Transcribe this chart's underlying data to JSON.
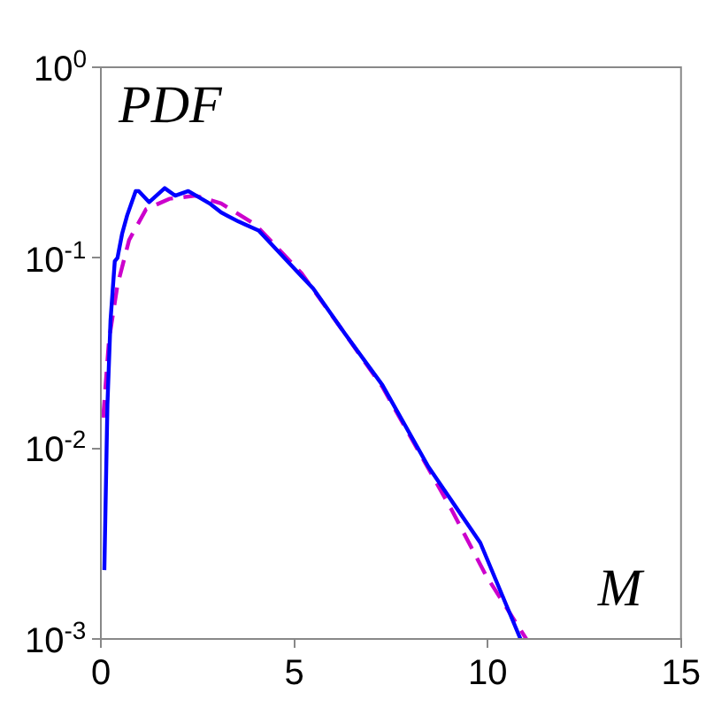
{
  "chart_data": {
    "type": "line",
    "xlabel": "M",
    "ylabel": "PDF",
    "log": "y",
    "xlim": [
      0,
      15
    ],
    "xticks": [
      0,
      5,
      10,
      15
    ],
    "ylim": [
      0.001,
      1
    ],
    "yticks": [
      {
        "value": 0.001,
        "label": "10$^{-3}$"
      },
      {
        "value": 0.01,
        "label": "10$^{-2}$"
      },
      {
        "value": 0.1,
        "label": "10$^{-1}$"
      },
      {
        "value": 1,
        "label": "10$^{0}$"
      }
    ],
    "series": [
      {
        "color": "#0000ff",
        "line_style": "solid",
        "x": [
          0.09,
          0.17,
          0.25,
          0.36,
          0.43,
          0.55,
          0.68,
          0.9,
          0.98,
          1.25,
          1.65,
          1.92,
          2.26,
          2.81,
          3.11,
          3.56,
          4.08,
          5.19,
          5.49,
          6.31,
          7.28,
          8.47,
          9.81,
          10.85
        ],
        "values": [
          0.0023,
          0.017,
          0.047,
          0.096,
          0.1,
          0.134,
          0.167,
          0.224,
          0.224,
          0.196,
          0.232,
          0.212,
          0.224,
          0.193,
          0.173,
          0.155,
          0.139,
          0.08,
          0.069,
          0.04,
          0.0215,
          0.008,
          0.0032,
          0.001
        ]
      },
      {
        "color": "#cc00cc",
        "line_style": "dashed",
        "x": [
          0.06,
          0.21,
          0.43,
          0.73,
          1.17,
          1.77,
          2.44,
          3.11,
          4.0,
          5.19,
          6.31,
          7.28,
          9.06,
          9.96,
          11.0
        ],
        "values": [
          0.0145,
          0.037,
          0.072,
          0.124,
          0.18,
          0.204,
          0.212,
          0.193,
          0.149,
          0.083,
          0.04,
          0.021,
          0.0048,
          0.00215,
          0.001
        ]
      }
    ]
  }
}
